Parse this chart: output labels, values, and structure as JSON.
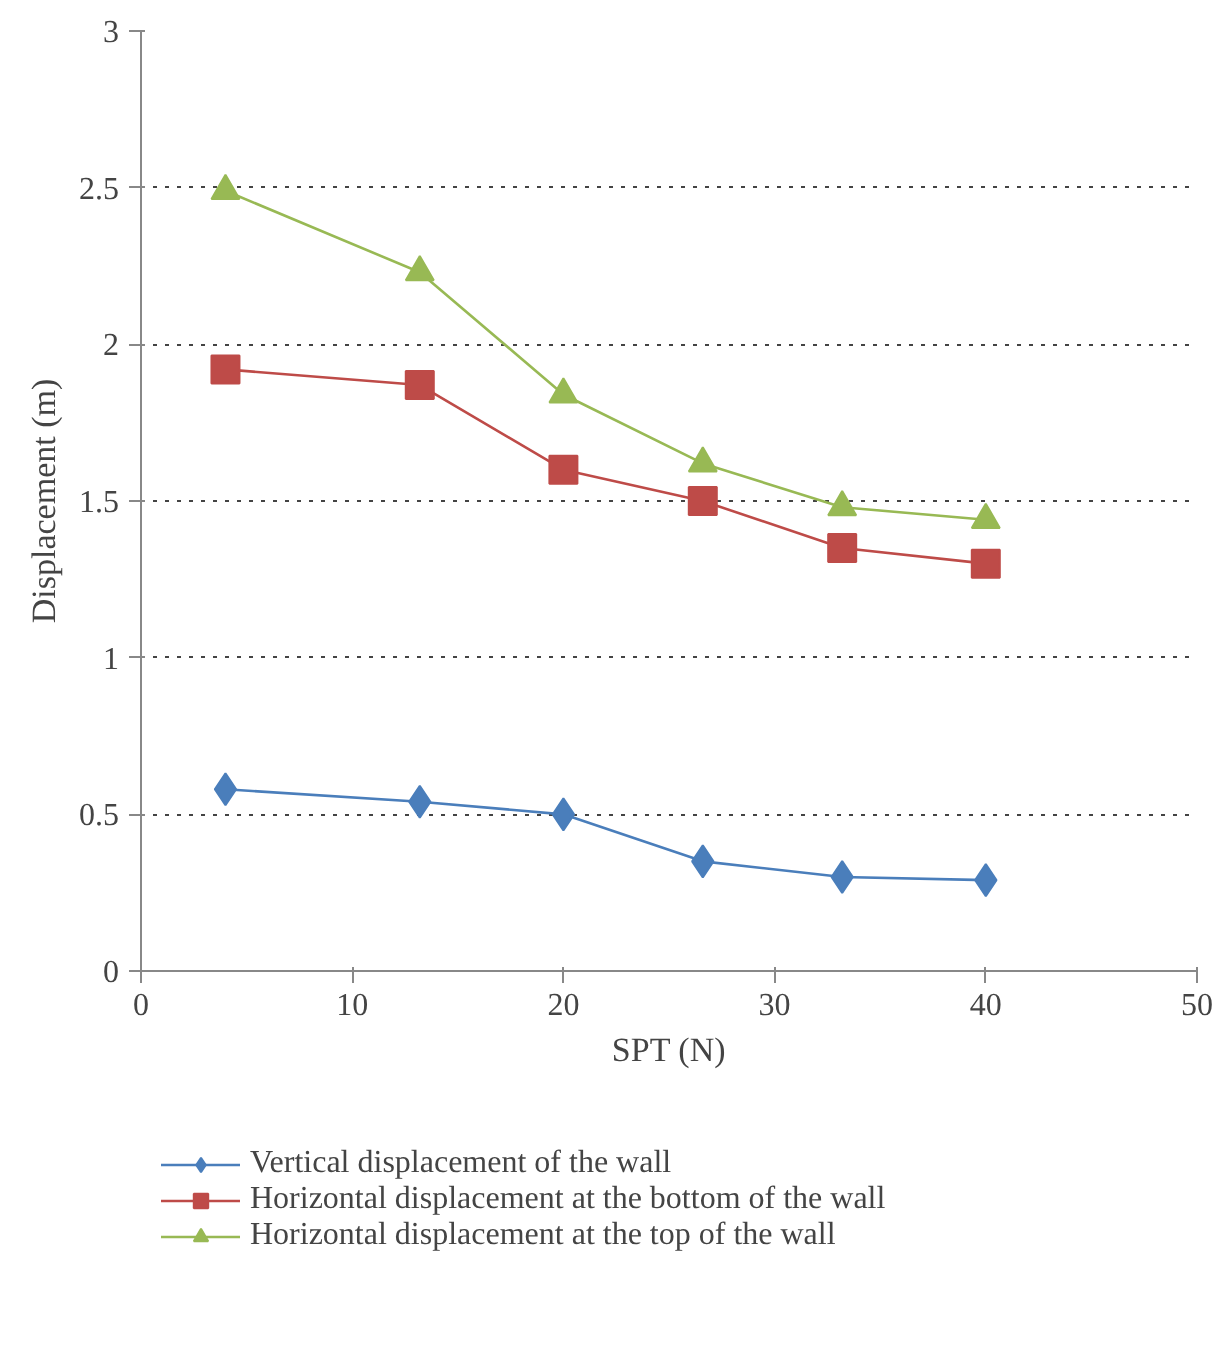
{
  "chart_data": {
    "type": "line",
    "xlabel": "SPT (N)",
    "ylabel": "Displacement (m)",
    "x": [
      4,
      13.2,
      20,
      26.6,
      33.2,
      40
    ],
    "series": [
      {
        "name": "Vertical displacement of the wall",
        "color": "#4a7ebb",
        "marker": "diamond",
        "values": [
          0.58,
          0.54,
          0.5,
          0.35,
          0.3,
          0.29
        ]
      },
      {
        "name": "Horizontal displacement at the bottom of the wall",
        "color": "#be4b48",
        "marker": "square",
        "values": [
          1.92,
          1.87,
          1.6,
          1.5,
          1.35,
          1.3
        ]
      },
      {
        "name": "Horizontal displacement at the top of the wall",
        "color": "#98b954",
        "marker": "triangle",
        "values": [
          2.49,
          2.23,
          1.84,
          1.62,
          1.48,
          1.44
        ]
      }
    ],
    "xlim": [
      0,
      50
    ],
    "xticks": [
      0,
      10,
      20,
      30,
      40,
      50
    ],
    "ylim": [
      0,
      3
    ],
    "yticks": [
      0,
      0.5,
      1,
      1.5,
      2,
      2.5,
      3
    ],
    "grid": "y",
    "legend": "bottom"
  }
}
